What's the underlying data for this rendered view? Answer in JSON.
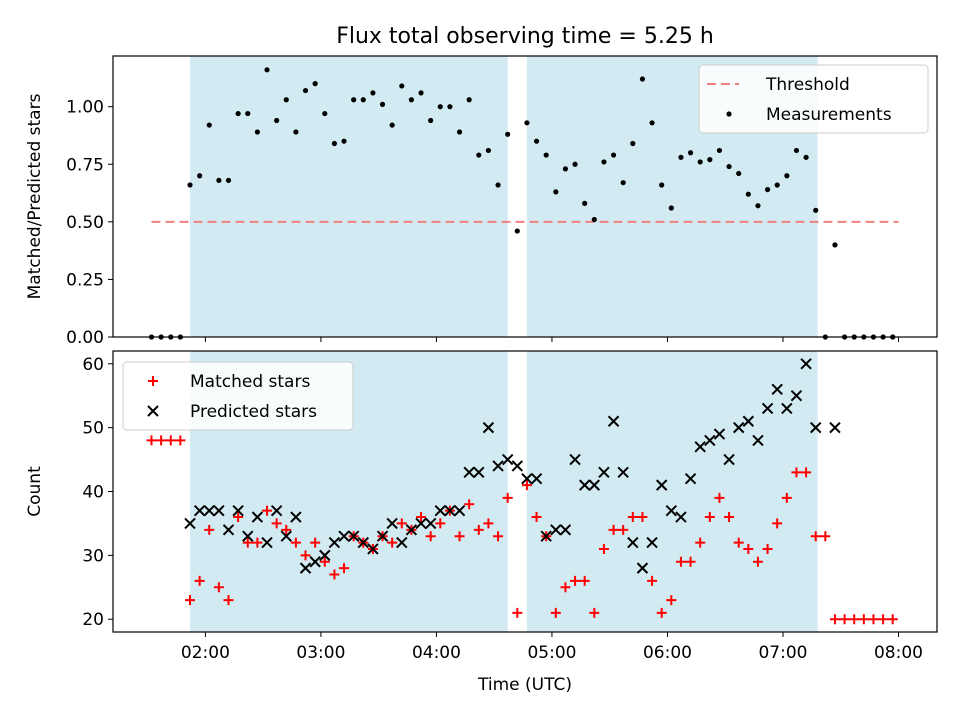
{
  "title": "Flux total observing time = 5.25 h",
  "chart_data": [
    {
      "type": "scatter",
      "x_unit": "UTC time",
      "xlim": [
        "01:12",
        "08:20"
      ],
      "ylim": [
        0.0,
        1.22
      ],
      "ylabel": "Matched/Predicted stars",
      "yticks": [
        "0.00",
        "0.25",
        "0.50",
        "0.75",
        "1.00"
      ],
      "shaded_intervals": [
        [
          "01:52",
          "04:37"
        ],
        [
          "04:47",
          "07:18"
        ]
      ],
      "shade_color": "#add8e6",
      "threshold": {
        "name": "Threshold",
        "y": 0.5,
        "x_range": [
          "01:32",
          "08:00"
        ],
        "color": "#f08080"
      },
      "legend": {
        "loc": "upper right",
        "entries": [
          "Threshold",
          "Measurements"
        ]
      },
      "series": [
        {
          "name": "Measurements",
          "marker": "dot",
          "color": "#000000",
          "x": [
            "01:32",
            "01:37",
            "01:42",
            "01:47",
            "01:52",
            "01:57",
            "02:02",
            "02:07",
            "02:12",
            "02:17",
            "02:22",
            "02:27",
            "02:32",
            "02:37",
            "02:42",
            "02:47",
            "02:52",
            "02:57",
            "03:02",
            "03:07",
            "03:12",
            "03:17",
            "03:22",
            "03:27",
            "03:32",
            "03:37",
            "03:42",
            "03:47",
            "03:52",
            "03:57",
            "04:02",
            "04:07",
            "04:12",
            "04:17",
            "04:22",
            "04:27",
            "04:32",
            "04:37",
            "04:42",
            "04:47",
            "04:52",
            "04:57",
            "05:02",
            "05:07",
            "05:12",
            "05:17",
            "05:22",
            "05:27",
            "05:32",
            "05:37",
            "05:42",
            "05:47",
            "05:52",
            "05:57",
            "06:02",
            "06:07",
            "06:12",
            "06:17",
            "06:22",
            "06:27",
            "06:32",
            "06:37",
            "06:42",
            "06:47",
            "06:52",
            "06:57",
            "07:02",
            "07:07",
            "07:12",
            "07:17",
            "07:22",
            "07:27",
            "07:32",
            "07:37",
            "07:42",
            "07:47",
            "07:52",
            "07:57"
          ],
          "y": [
            0,
            0,
            0,
            0,
            0.66,
            0.7,
            0.92,
            0.68,
            0.68,
            0.97,
            0.97,
            0.89,
            1.16,
            0.94,
            1.03,
            0.89,
            1.07,
            1.1,
            0.97,
            0.84,
            0.85,
            1.03,
            1.03,
            1.06,
            1.01,
            0.92,
            1.09,
            1.03,
            1.06,
            0.94,
            1.0,
            1.0,
            0.89,
            1.03,
            0.79,
            0.81,
            0.66,
            0.88,
            0.46,
            0.93,
            0.85,
            0.79,
            0.63,
            0.73,
            0.75,
            0.58,
            0.51,
            0.76,
            0.79,
            0.67,
            0.84,
            1.12,
            0.93,
            0.66,
            0.56,
            0.78,
            0.8,
            0.76,
            0.77,
            0.81,
            0.74,
            0.71,
            0.62,
            0.57,
            0.64,
            0.66,
            0.7,
            0.81,
            0.78,
            0.55,
            0,
            0.4,
            0,
            0,
            0,
            0,
            0,
            0
          ]
        }
      ]
    },
    {
      "type": "scatter",
      "x_unit": "UTC time",
      "xlim": [
        "01:12",
        "08:20"
      ],
      "xlabel": "Time (UTC)",
      "xticks": [
        "02:00",
        "03:00",
        "04:00",
        "05:00",
        "06:00",
        "07:00",
        "08:00"
      ],
      "ylim": [
        18,
        62
      ],
      "ylabel": "Count",
      "yticks": [
        "20",
        "30",
        "40",
        "50",
        "60"
      ],
      "shaded_intervals": [
        [
          "01:52",
          "04:37"
        ],
        [
          "04:47",
          "07:18"
        ]
      ],
      "shade_color": "#add8e6",
      "legend": {
        "loc": "upper left",
        "entries": [
          "Matched stars",
          "Predicted stars"
        ]
      },
      "series": [
        {
          "name": "Matched stars",
          "marker": "plus",
          "color": "#ff0000",
          "x": [
            "01:32",
            "01:37",
            "01:42",
            "01:47",
            "01:52",
            "01:57",
            "02:02",
            "02:07",
            "02:12",
            "02:17",
            "02:22",
            "02:27",
            "02:32",
            "02:37",
            "02:42",
            "02:47",
            "02:52",
            "02:57",
            "03:02",
            "03:07",
            "03:12",
            "03:17",
            "03:22",
            "03:27",
            "03:32",
            "03:37",
            "03:42",
            "03:47",
            "03:52",
            "03:57",
            "04:02",
            "04:07",
            "04:12",
            "04:17",
            "04:22",
            "04:27",
            "04:32",
            "04:37",
            "04:42",
            "04:47",
            "04:52",
            "04:57",
            "05:02",
            "05:07",
            "05:12",
            "05:17",
            "05:22",
            "05:27",
            "05:32",
            "05:37",
            "05:42",
            "05:47",
            "05:52",
            "05:57",
            "06:02",
            "06:07",
            "06:12",
            "06:17",
            "06:22",
            "06:27",
            "06:32",
            "06:37",
            "06:42",
            "06:47",
            "06:52",
            "06:57",
            "07:02",
            "07:07",
            "07:12",
            "07:17",
            "07:22",
            "07:27",
            "07:32",
            "07:37",
            "07:42",
            "07:47",
            "07:52",
            "07:57"
          ],
          "y": [
            48,
            48,
            48,
            48,
            23,
            26,
            34,
            25,
            23,
            36,
            32,
            32,
            37,
            35,
            34,
            32,
            30,
            32,
            29,
            27,
            28,
            33,
            32,
            31,
            33,
            32,
            35,
            34,
            36,
            33,
            35,
            37,
            33,
            38,
            34,
            35,
            33,
            39,
            21,
            41,
            36,
            33,
            21,
            25,
            26,
            26,
            21,
            31,
            34,
            34,
            36,
            36,
            26,
            21,
            23,
            29,
            29,
            32,
            36,
            39,
            36,
            32,
            31,
            29,
            31,
            35,
            39,
            43,
            43,
            33,
            33,
            20,
            20,
            20,
            20,
            20,
            20,
            20
          ]
        },
        {
          "name": "Predicted stars",
          "marker": "x",
          "color": "#000000",
          "x": [
            "01:52",
            "01:57",
            "02:02",
            "02:07",
            "02:12",
            "02:17",
            "02:22",
            "02:27",
            "02:32",
            "02:37",
            "02:42",
            "02:47",
            "02:52",
            "02:57",
            "03:02",
            "03:07",
            "03:12",
            "03:17",
            "03:22",
            "03:27",
            "03:32",
            "03:37",
            "03:42",
            "03:47",
            "03:52",
            "03:57",
            "04:02",
            "04:07",
            "04:12",
            "04:17",
            "04:22",
            "04:27",
            "04:32",
            "04:37",
            "04:42",
            "04:47",
            "04:52",
            "04:57",
            "05:02",
            "05:07",
            "05:12",
            "05:17",
            "05:22",
            "05:27",
            "05:32",
            "05:37",
            "05:42",
            "05:47",
            "05:52",
            "05:57",
            "06:02",
            "06:07",
            "06:12",
            "06:17",
            "06:22",
            "06:27",
            "06:32",
            "06:37",
            "06:42",
            "06:47",
            "06:52",
            "06:57",
            "07:02",
            "07:07",
            "07:12",
            "07:17",
            "07:27"
          ],
          "y": [
            35,
            37,
            37,
            37,
            34,
            37,
            33,
            36,
            32,
            37,
            33,
            36,
            28,
            29,
            30,
            32,
            33,
            33,
            32,
            31,
            33,
            35,
            32,
            34,
            35,
            35,
            37,
            37,
            37,
            43,
            43,
            50,
            44,
            45,
            44,
            42,
            42,
            33,
            34,
            34,
            45,
            41,
            41,
            43,
            51,
            43,
            32,
            28,
            32,
            41,
            37,
            36,
            42,
            47,
            48,
            49,
            45,
            50,
            51,
            48,
            53,
            56,
            53,
            55,
            60,
            50,
            50
          ]
        }
      ]
    }
  ]
}
